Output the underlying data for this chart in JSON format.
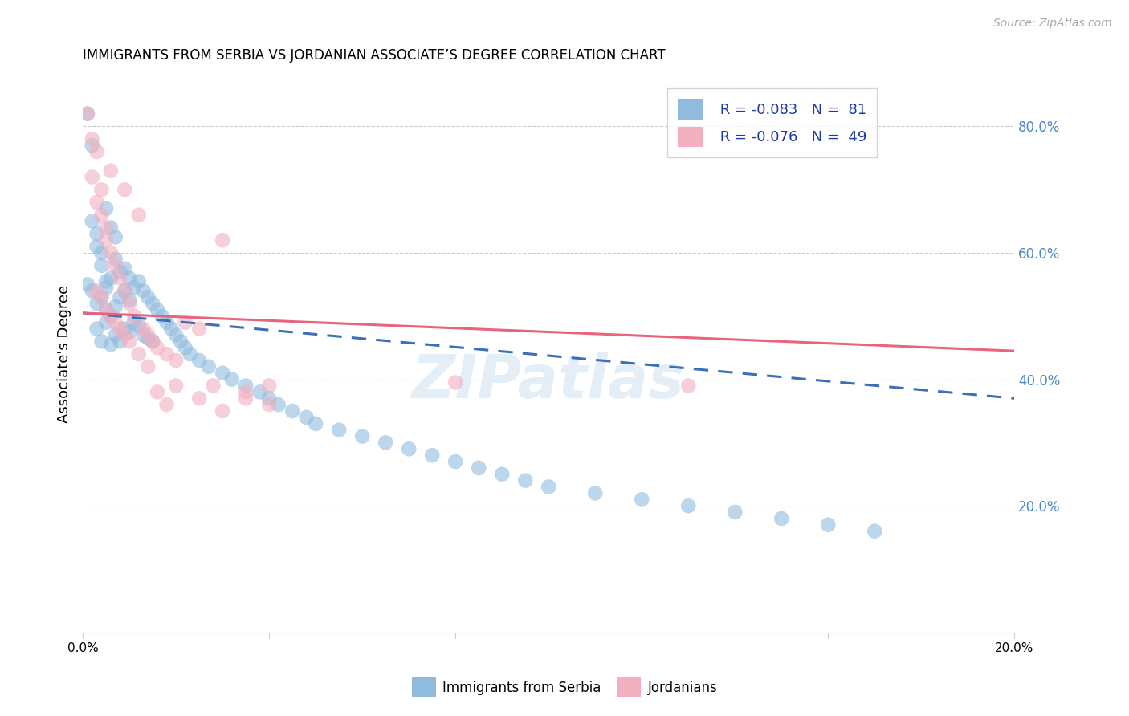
{
  "title": "IMMIGRANTS FROM SERBIA VS JORDANIAN ASSOCIATE’S DEGREE CORRELATION CHART",
  "source": "Source: ZipAtlas.com",
  "ylabel": "Associate's Degree",
  "right_ytick_vals": [
    0.2,
    0.4,
    0.6,
    0.8
  ],
  "right_ytick_labels": [
    "20.0%",
    "40.0%",
    "60.0%",
    "80.0%"
  ],
  "xlim": [
    0.0,
    0.2
  ],
  "ylim": [
    0.0,
    0.88
  ],
  "blue_color": "#90bbde",
  "pink_color": "#f2afc0",
  "blue_line_color": "#3a6fba",
  "pink_line_color": "#e8637e",
  "watermark": "ZIPatlas",
  "serbia_x": [
    0.001,
    0.001,
    0.002,
    0.002,
    0.002,
    0.003,
    0.003,
    0.003,
    0.003,
    0.004,
    0.004,
    0.004,
    0.004,
    0.005,
    0.005,
    0.005,
    0.005,
    0.005,
    0.006,
    0.006,
    0.006,
    0.006,
    0.007,
    0.007,
    0.007,
    0.007,
    0.008,
    0.008,
    0.008,
    0.009,
    0.009,
    0.009,
    0.01,
    0.01,
    0.01,
    0.011,
    0.011,
    0.012,
    0.012,
    0.013,
    0.013,
    0.014,
    0.014,
    0.015,
    0.015,
    0.016,
    0.017,
    0.018,
    0.019,
    0.02,
    0.021,
    0.022,
    0.023,
    0.025,
    0.027,
    0.03,
    0.032,
    0.035,
    0.038,
    0.04,
    0.042,
    0.045,
    0.048,
    0.05,
    0.055,
    0.06,
    0.065,
    0.07,
    0.075,
    0.08,
    0.085,
    0.09,
    0.095,
    0.1,
    0.11,
    0.12,
    0.13,
    0.14,
    0.15,
    0.16,
    0.17
  ],
  "serbia_y": [
    0.82,
    0.55,
    0.77,
    0.65,
    0.54,
    0.63,
    0.61,
    0.52,
    0.48,
    0.6,
    0.58,
    0.53,
    0.46,
    0.67,
    0.555,
    0.545,
    0.51,
    0.49,
    0.64,
    0.56,
    0.5,
    0.455,
    0.625,
    0.59,
    0.515,
    0.47,
    0.57,
    0.53,
    0.46,
    0.575,
    0.54,
    0.48,
    0.56,
    0.525,
    0.475,
    0.545,
    0.49,
    0.555,
    0.485,
    0.54,
    0.47,
    0.53,
    0.465,
    0.52,
    0.46,
    0.51,
    0.5,
    0.49,
    0.48,
    0.47,
    0.46,
    0.45,
    0.44,
    0.43,
    0.42,
    0.41,
    0.4,
    0.39,
    0.38,
    0.37,
    0.36,
    0.35,
    0.34,
    0.33,
    0.32,
    0.31,
    0.3,
    0.29,
    0.28,
    0.27,
    0.26,
    0.25,
    0.24,
    0.23,
    0.22,
    0.21,
    0.2,
    0.19,
    0.18,
    0.17,
    0.16
  ],
  "jordan_x": [
    0.001,
    0.002,
    0.002,
    0.003,
    0.003,
    0.004,
    0.004,
    0.005,
    0.005,
    0.006,
    0.006,
    0.007,
    0.008,
    0.009,
    0.009,
    0.01,
    0.011,
    0.012,
    0.013,
    0.014,
    0.015,
    0.016,
    0.018,
    0.02,
    0.022,
    0.025,
    0.028,
    0.03,
    0.035,
    0.04,
    0.003,
    0.004,
    0.005,
    0.006,
    0.007,
    0.008,
    0.009,
    0.01,
    0.012,
    0.014,
    0.016,
    0.018,
    0.02,
    0.025,
    0.03,
    0.035,
    0.04,
    0.08,
    0.13
  ],
  "jordan_y": [
    0.82,
    0.78,
    0.72,
    0.76,
    0.68,
    0.7,
    0.66,
    0.64,
    0.62,
    0.6,
    0.73,
    0.58,
    0.56,
    0.7,
    0.54,
    0.52,
    0.5,
    0.66,
    0.48,
    0.47,
    0.46,
    0.45,
    0.44,
    0.43,
    0.49,
    0.48,
    0.39,
    0.62,
    0.37,
    0.36,
    0.54,
    0.53,
    0.51,
    0.5,
    0.49,
    0.48,
    0.47,
    0.46,
    0.44,
    0.42,
    0.38,
    0.36,
    0.39,
    0.37,
    0.35,
    0.38,
    0.39,
    0.395,
    0.39
  ]
}
